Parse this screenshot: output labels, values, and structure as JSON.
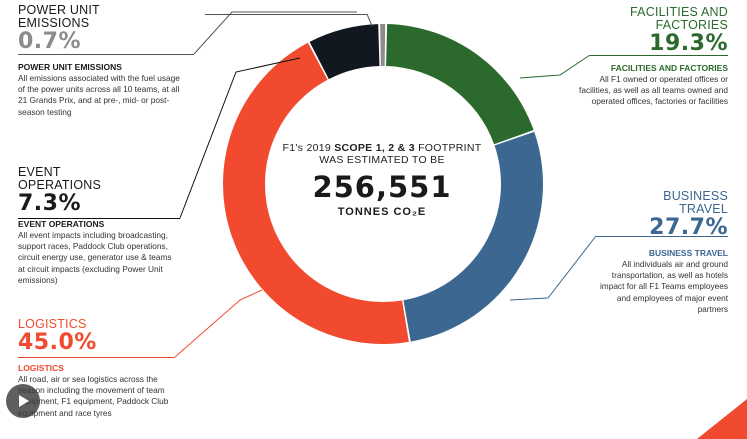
{
  "center": {
    "line1_a": "F1's 2019 ",
    "line1_b": "SCOPE 1, 2 & 3",
    "line1_c": " FOOTPRINT",
    "line2": "WAS ESTIMATED TO BE",
    "total": "256,551",
    "unit": "TONNES CO₂E"
  },
  "segments": {
    "power": {
      "title": "POWER UNIT\nEMISSIONS",
      "pct": "0.7%",
      "subtitle": "POWER UNIT EMISSIONS",
      "desc": "All emissions associated with the fuel usage of the power units across all 10 teams, at all 21 Grands Prix, and at  pre-, mid- or post-season testing"
    },
    "event": {
      "title": "EVENT\nOPERATIONS",
      "pct": "7.3%",
      "subtitle": "EVENT OPERATIONS",
      "desc": "All event impacts including broadcasting, support races, Paddock Club operations, circuit energy use, generator use & teams at circuit impacts (excluding Power Unit emissions)"
    },
    "logistics": {
      "title": "LOGISTICS",
      "pct": "45.0%",
      "subtitle": "LOGISTICS",
      "desc": "All road, air or sea logistics across the season including the movement of team equipment, F1 equipment, Paddock Club equipment and race tyres"
    },
    "facilities": {
      "title": "FACILITIES AND\nFACTORIES",
      "pct": "19.3%",
      "subtitle": "FACILITIES AND FACTORIES",
      "desc": "All F1 owned or operated offices or facilities, as well as all teams owned and operated offices, factories or facilities"
    },
    "business": {
      "title": "BUSINESS\nTRAVEL",
      "pct": "27.7%",
      "subtitle": "BUSINESS TRAVEL",
      "desc": "All individuals air and ground transportation, as well as hotels impact for all F1 Teams employees and employees of major event partners"
    }
  },
  "colors": {
    "power": "#8c8c8c",
    "event": "#111820",
    "logistics": "#f14a2f",
    "facilities": "#2b6a2c",
    "business": "#3b6790"
  },
  "chart_data": {
    "type": "pie",
    "donut": true,
    "total": 256551,
    "unit": "tonnes CO2e",
    "categories": [
      "Facilities and Factories",
      "Business Travel",
      "Logistics",
      "Event Operations",
      "Power Unit Emissions"
    ],
    "values": [
      19.3,
      27.7,
      45.0,
      7.3,
      0.7
    ],
    "colors": [
      "#2b6a2c",
      "#3b6790",
      "#f14a2f",
      "#111820",
      "#8c8c8c"
    ]
  }
}
